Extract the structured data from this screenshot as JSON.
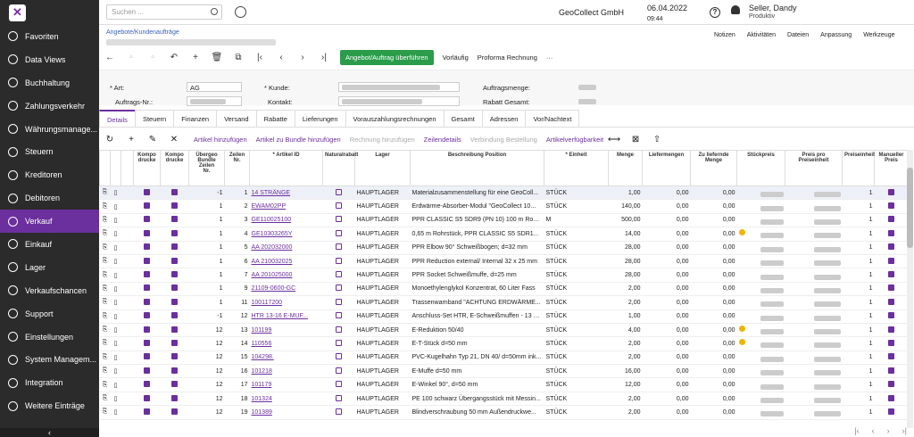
{
  "sidebar": {
    "items": [
      {
        "label": "Favoriten",
        "icon": "star-icon"
      },
      {
        "label": "Data Views",
        "icon": "pie-icon"
      },
      {
        "label": "Buchhaltung",
        "icon": "book-icon"
      },
      {
        "label": "Zahlungsverkehr",
        "icon": "dollar-icon"
      },
      {
        "label": "Währungsmanage...",
        "icon": "currency-icon"
      },
      {
        "label": "Steuern",
        "icon": "percent-icon"
      },
      {
        "label": "Kreditoren",
        "icon": "minus-icon"
      },
      {
        "label": "Debitoren",
        "icon": "plus-icon"
      },
      {
        "label": "Verkauf",
        "icon": "sale-icon"
      },
      {
        "label": "Einkauf",
        "icon": "cart-icon"
      },
      {
        "label": "Lager",
        "icon": "truck-icon"
      },
      {
        "label": "Verkaufschancen",
        "icon": "tag-icon"
      },
      {
        "label": "Support",
        "icon": "support-icon"
      },
      {
        "label": "Einstellungen",
        "icon": "gear-icon"
      },
      {
        "label": "System Managem...",
        "icon": "globe-icon"
      },
      {
        "label": "Integration",
        "icon": "integration-icon"
      },
      {
        "label": "Weitere Einträge",
        "icon": "more-icon"
      }
    ],
    "collapse": "‹"
  },
  "header": {
    "search_placeholder": "Suchen ...",
    "company": "GeoCollect GmbH",
    "date": "06.04.2022",
    "time": "09:44",
    "user": "Seller, Dandy",
    "role": "Produktiv"
  },
  "page": {
    "breadcrumb": "Angebote/Kundenaufträge",
    "links": [
      "Notizen",
      "Aktivitäten",
      "Dateien",
      "Anpassung",
      "Werkzeuge"
    ]
  },
  "toolbar": {
    "convert": "Angebot/Auftrag überführen",
    "template": "Vorläufig",
    "proforma": "Proforma Rechnung",
    "more": "···"
  },
  "form": {
    "art_label": "* Art:",
    "art_value": "AG",
    "auftrag_label": "Auftrags-Nr.:",
    "kunde_label": "* Kunde:",
    "kontakt_label": "Kontakt:",
    "menge_label": "Auftragsmenge:",
    "rabatt_label": "Rabatt Gesamt:"
  },
  "tabs": [
    "Details",
    "Steuern",
    "Finanzen",
    "Versand",
    "Rabatte",
    "Lieferungen",
    "Vorauszahlungsrechnungen",
    "Gesamt",
    "Adressen",
    "Vor/Nachtext"
  ],
  "grid_toolbar": {
    "add_item": "Artikel hinzufügen",
    "add_bundle": "Artikel zu Bundle hinzufügen",
    "add_invoice": "Rechnung hinzufügen",
    "details": "Zeilendetails",
    "link": "Verbindung Bestellung",
    "availability": "Artikelverfügbarkeit"
  },
  "columns": [
    "",
    "",
    "",
    "Kompo\ndrucke",
    "Kompo\ndrucke",
    "Übergeo\nBundle\nZeilen\nNr.",
    "Zeilen\nNr.",
    "* Artikel ID",
    "Naturalrabatt",
    "Lager",
    "Beschreibung Position",
    "* Einheit",
    "Menge",
    "Liefermengen",
    "Zu liefernde Menge",
    "Stückpreis",
    "Preis pro Preiseinheit",
    "Preiseinheit",
    "Manueller Preis"
  ],
  "rows": [
    {
      "b": "-1",
      "n": "1",
      "id": "14 STRÄNGE",
      "nat": false,
      "lager": "HAUPTLAGER",
      "desc": "Materialzusammenstellung für eine GeoColl...",
      "unit": "STÜCK",
      "menge": "1,00",
      "lief": "0,00",
      "zul": "0,00",
      "warn": false,
      "pe": "1",
      "sel": true
    },
    {
      "b": "1",
      "n": "2",
      "id": "EWAM02PP",
      "nat": false,
      "lager": "HAUPTLAGER",
      "desc": "Erdwärme-Absorber-Modul \"GeoCollect 10...",
      "unit": "STÜCK",
      "menge": "140,00",
      "lief": "0,00",
      "zul": "0,00",
      "warn": false,
      "pe": "1"
    },
    {
      "b": "1",
      "n": "3",
      "id": "GE110025100",
      "nat": false,
      "lager": "HAUPTLAGER",
      "desc": "PPR CLASSIC S5 SDR9 (PN 10) 100 m Rohr i...",
      "unit": "M",
      "menge": "500,00",
      "lief": "0,00",
      "zul": "0,00",
      "warn": false,
      "pe": "1"
    },
    {
      "b": "1",
      "n": "4",
      "id": "GE10303265Y",
      "nat": false,
      "lager": "HAUPTLAGER",
      "desc": "0,65 m Rohrstück, PPR CLASSIC S5 SDR11 (...",
      "unit": "STÜCK",
      "menge": "14,00",
      "lief": "0,00",
      "zul": "0,00",
      "warn": true,
      "pe": "1"
    },
    {
      "b": "1",
      "n": "5",
      "id": "AA 202032000",
      "nat": false,
      "lager": "HAUPTLAGER",
      "desc": "PPR Elbow 90° Schweißbogen; d=32 mm",
      "unit": "STÜCK",
      "menge": "28,00",
      "lief": "0,00",
      "zul": "0,00",
      "warn": false,
      "pe": "1"
    },
    {
      "b": "1",
      "n": "6",
      "id": "AA 210032025",
      "nat": false,
      "lager": "HAUPTLAGER",
      "desc": "PPR Reduction external/ Internal 32 x 25 mm",
      "unit": "STÜCK",
      "menge": "28,00",
      "lief": "0,00",
      "zul": "0,00",
      "warn": false,
      "pe": "1"
    },
    {
      "b": "1",
      "n": "7",
      "id": "AA 201025000",
      "nat": false,
      "lager": "HAUPTLAGER",
      "desc": "PPR Socket Schweißmuffe, d=25 mm",
      "unit": "STÜCK",
      "menge": "28,00",
      "lief": "0,00",
      "zul": "0,00",
      "warn": false,
      "pe": "1"
    },
    {
      "b": "1",
      "n": "9",
      "id": "21109-0600-GC",
      "nat": false,
      "lager": "HAUPTLAGER",
      "desc": "Monoethylenglykol Konzentrat, 60 Liter Fass",
      "unit": "STÜCK",
      "menge": "2,00",
      "lief": "0,00",
      "zul": "0,00",
      "warn": false,
      "pe": "1"
    },
    {
      "b": "1",
      "n": "11",
      "id": "100117200",
      "nat": false,
      "lager": "HAUPTLAGER",
      "desc": "Trassenwarnband \"ACHTUNG ERDWÄRME...",
      "unit": "STÜCK",
      "menge": "2,00",
      "lief": "0,00",
      "zul": "0,00",
      "warn": false,
      "pe": "1"
    },
    {
      "b": "-1",
      "n": "12",
      "id": "HTR 13-16 E-MUF...",
      "nat": false,
      "lager": "HAUPTLAGER",
      "desc": "Anschluss-Set HTR, E-Schweißmuffen - 13 bi...",
      "unit": "STÜCK",
      "menge": "1,00",
      "lief": "0,00",
      "zul": "0,00",
      "warn": false,
      "pe": "1"
    },
    {
      "b": "12",
      "n": "13",
      "id": "101199",
      "nat": false,
      "lager": "HAUPTLAGER",
      "desc": "E-Reduktion 50/40",
      "unit": "STÜCK",
      "menge": "4,00",
      "lief": "0,00",
      "zul": "0,00",
      "warn": true,
      "pe": "1"
    },
    {
      "b": "12",
      "n": "14",
      "id": "110556",
      "nat": false,
      "lager": "HAUPTLAGER",
      "desc": "E-T-Stück d=50 mm",
      "unit": "STÜCK",
      "menge": "2,00",
      "lief": "0,00",
      "zul": "0,00",
      "warn": true,
      "pe": "1"
    },
    {
      "b": "12",
      "n": "15",
      "id": "104298.",
      "nat": false,
      "lager": "HAUPTLAGER",
      "desc": "PVC-Kugelhahn Typ 21, DN 40/ d=50mm ink...",
      "unit": "STÜCK",
      "menge": "2,00",
      "lief": "0,00",
      "zul": "0,00",
      "warn": false,
      "pe": "1"
    },
    {
      "b": "12",
      "n": "16",
      "id": "101218",
      "nat": false,
      "lager": "HAUPTLAGER",
      "desc": "E-Muffe d=50 mm",
      "unit": "STÜCK",
      "menge": "16,00",
      "lief": "0,00",
      "zul": "0,00",
      "warn": false,
      "pe": "1"
    },
    {
      "b": "12",
      "n": "17",
      "id": "101179",
      "nat": false,
      "lager": "HAUPTLAGER",
      "desc": "E-Winkel 90°, d=50 mm",
      "unit": "STÜCK",
      "menge": "12,00",
      "lief": "0,00",
      "zul": "0,00",
      "warn": false,
      "pe": "1"
    },
    {
      "b": "12",
      "n": "18",
      "id": "101324",
      "nat": false,
      "lager": "HAUPTLAGER",
      "desc": "PE 100 schwarz Übergangsstück mit Messin...",
      "unit": "STÜCK",
      "menge": "2,00",
      "lief": "0,00",
      "zul": "0,00",
      "warn": false,
      "pe": "1"
    },
    {
      "b": "12",
      "n": "19",
      "id": "101389",
      "nat": false,
      "lager": "HAUPTLAGER",
      "desc": "Blindverschraubung 50 mm Außendruckwe...",
      "unit": "STÜCK",
      "menge": "2,00",
      "lief": "0,00",
      "zul": "0,00",
      "warn": false,
      "pe": "1"
    }
  ],
  "pager": [
    "|‹",
    "‹",
    "›",
    "›|"
  ]
}
